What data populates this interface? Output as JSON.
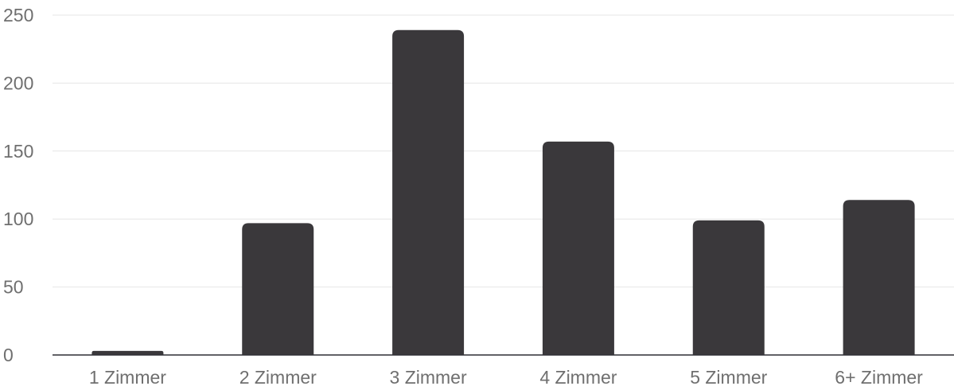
{
  "chart_data": {
    "type": "bar",
    "categories": [
      "1 Zimmer",
      "2 Zimmer",
      "3 Zimmer",
      "4 Zimmer",
      "5 Zimmer",
      "6+ Zimmer"
    ],
    "values": [
      3,
      97,
      239,
      157,
      99,
      114
    ],
    "title": "",
    "xlabel": "",
    "ylabel": "",
    "ylim": [
      0,
      250
    ],
    "yticks": [
      "0",
      "50",
      "100",
      "150",
      "200",
      "250"
    ],
    "grid": true,
    "legend": "none",
    "colors": {
      "bar": "#3a383b",
      "grid": "#e6e6e6",
      "axis": "#2f2f35",
      "text": "#6f6f6f"
    }
  }
}
